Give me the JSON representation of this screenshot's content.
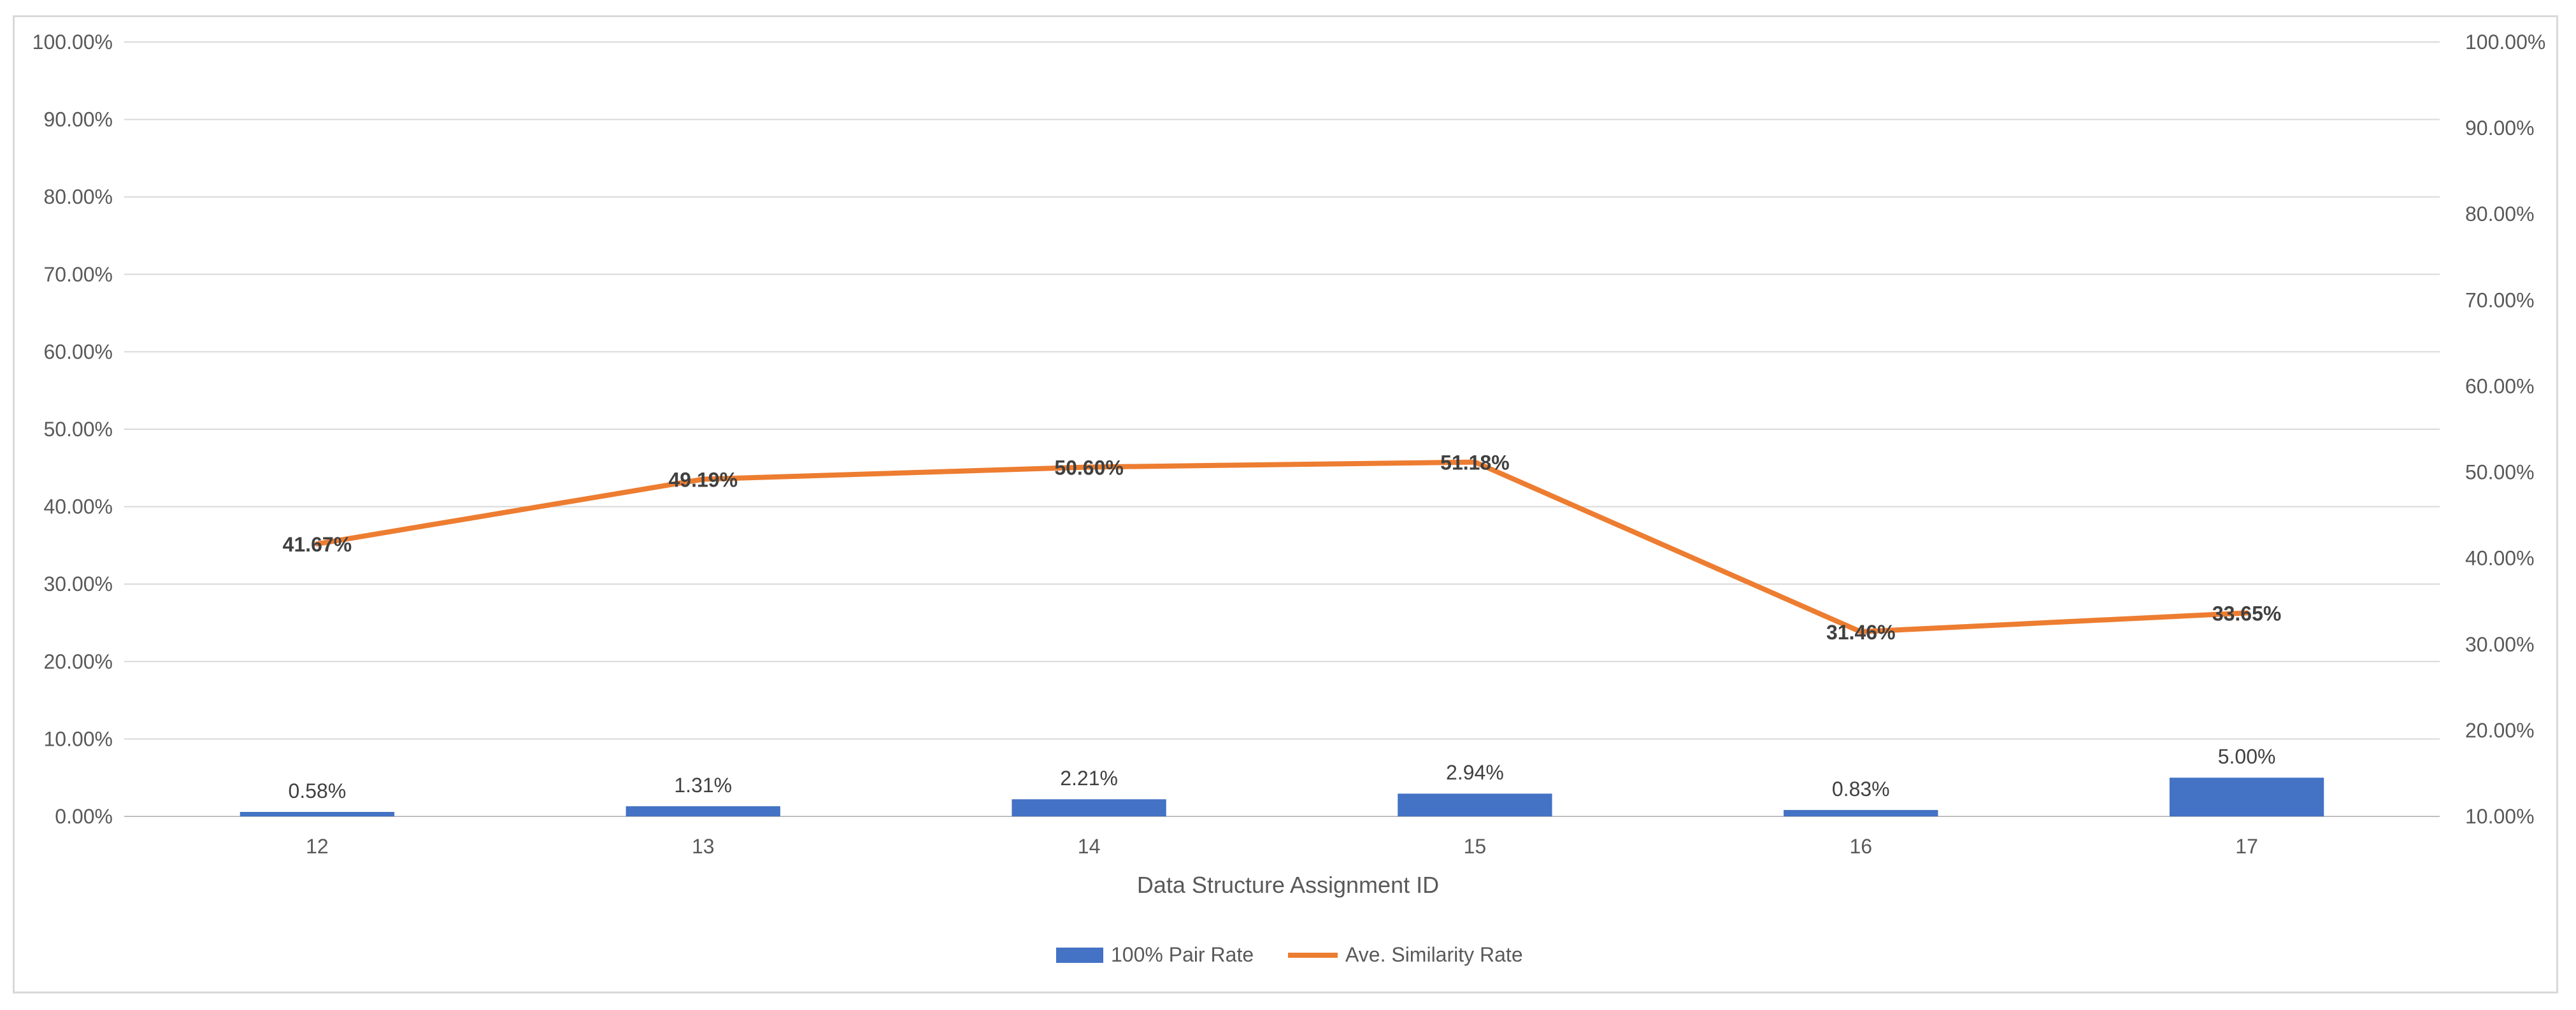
{
  "chart_data": {
    "type": "bar+line",
    "title": "",
    "xlabel": "Data Structure Assignment ID",
    "categories": [
      "12",
      "13",
      "14",
      "15",
      "16",
      "17"
    ],
    "series": [
      {
        "name": "100% Pair Rate",
        "type": "bar",
        "axis": "left",
        "color": "#4472C4",
        "values": [
          0.58,
          1.31,
          2.21,
          2.94,
          0.83,
          5.0
        ],
        "labels": [
          "0.58%",
          "1.31%",
          "2.21%",
          "2.94%",
          "0.83%",
          "5.00%"
        ]
      },
      {
        "name": "Ave. Similarity Rate",
        "type": "line",
        "axis": "right",
        "color": "#ED7D31",
        "values": [
          41.67,
          49.19,
          50.6,
          51.18,
          31.46,
          33.65
        ],
        "labels": [
          "41.67%",
          "49.19%",
          "50.60%",
          "51.18%",
          "31.46%",
          "33.65%"
        ]
      }
    ],
    "left_axis": {
      "ylim": [
        0,
        100
      ],
      "ticks": [
        0,
        10,
        20,
        30,
        40,
        50,
        60,
        70,
        80,
        90,
        100
      ],
      "tick_labels": [
        "0.00%",
        "10.00%",
        "20.00%",
        "30.00%",
        "40.00%",
        "50.00%",
        "60.00%",
        "70.00%",
        "80.00%",
        "90.00%",
        "100.00%"
      ]
    },
    "right_axis": {
      "ylim": [
        10,
        100
      ],
      "ticks": [
        10,
        20,
        30,
        40,
        50,
        60,
        70,
        80,
        90,
        100
      ],
      "tick_labels": [
        "10.00%",
        "20.00%",
        "30.00%",
        "40.00%",
        "50.00%",
        "60.00%",
        "70.00%",
        "80.00%",
        "90.00%",
        "100.00%"
      ]
    },
    "grid": true,
    "legend_position": "bottom-center"
  }
}
